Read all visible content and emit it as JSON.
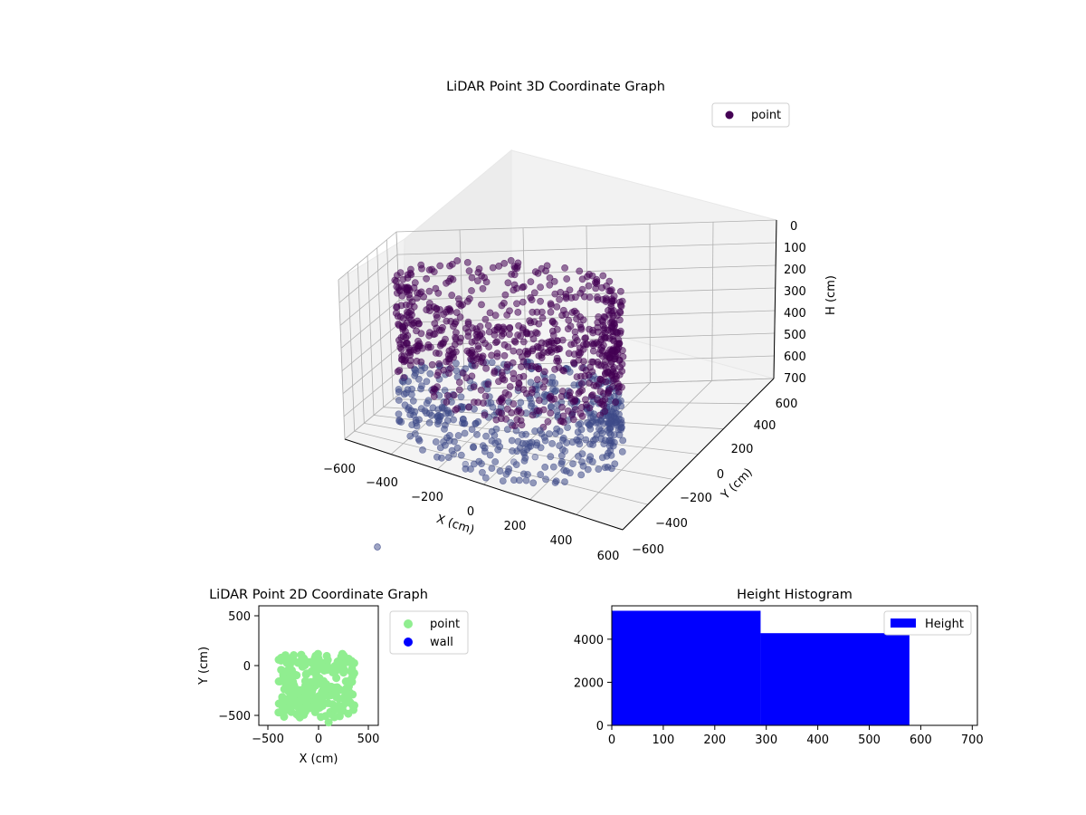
{
  "colors": {
    "point3d": "#440154",
    "point3d_low": "#3e4a89",
    "point2d": "#90ee90",
    "wall": "#0000ff",
    "hist": "#0000ff",
    "pane": "#f2f2f2",
    "grid": "#b0b0b0"
  },
  "chart_data": [
    {
      "type": "scatter",
      "title": "LiDAR Point 3D Coordinate Graph",
      "xlabel": "X (cm)",
      "ylabel": "Y (cm)",
      "zlabel": "H (cm)",
      "xlim": [
        -600,
        600
      ],
      "ylim": [
        -600,
        600
      ],
      "zlim": [
        700,
        0
      ],
      "xticks": [
        "−600",
        "−400",
        "−200",
        "0",
        "200",
        "400",
        "600"
      ],
      "yticks": [
        "−600",
        "−400",
        "−200",
        "0",
        "200",
        "400",
        "600"
      ],
      "zticks": [
        "0",
        "100",
        "200",
        "300",
        "400",
        "500",
        "600",
        "700"
      ],
      "grid": true,
      "legend": {
        "position": "top-right",
        "entries": [
          "point"
        ]
      },
      "series": [
        {
          "name": "point",
          "cloud": {
            "x_range": [
              -450,
              350
            ],
            "y_range": [
              -550,
              150
            ],
            "h_range": [
              0,
              700
            ],
            "shape": "ring"
          },
          "outliers": [
            {
              "x": -120,
              "y": -480,
              "h": 690
            },
            {
              "x": 60,
              "y": -420,
              "h": 650
            },
            {
              "x": 120,
              "y": -350,
              "h": 640
            },
            {
              "x": 220,
              "y": -300,
              "h": 610
            },
            {
              "x": 260,
              "y": -250,
              "h": 560
            },
            {
              "x": -30,
              "y": -200,
              "h": 580
            },
            {
              "x": -200,
              "y": -380,
              "h": 700
            }
          ]
        }
      ]
    },
    {
      "type": "scatter",
      "title": "LiDAR Point 2D Coordinate Graph",
      "xlabel": "X (cm)",
      "ylabel": "Y (cm)",
      "xlim": [
        -600,
        600
      ],
      "ylim": [
        -600,
        600
      ],
      "xticks": [
        "−500",
        "0",
        "500"
      ],
      "yticks": [
        "500",
        "0",
        "−500"
      ],
      "legend": {
        "position": "outside-right",
        "entries": [
          "point",
          "wall"
        ]
      },
      "series": [
        {
          "name": "point",
          "region": {
            "x_range": [
              -400,
              360
            ],
            "y_range": [
              -560,
              130
            ]
          }
        },
        {
          "name": "wall",
          "points": []
        }
      ]
    },
    {
      "type": "bar",
      "title": "Height Histogram",
      "xlabel": "",
      "ylabel": "",
      "xlim": [
        0,
        710
      ],
      "ylim": [
        0,
        5550
      ],
      "xticks": [
        "0",
        "100",
        "200",
        "300",
        "400",
        "500",
        "600",
        "700"
      ],
      "yticks": [
        "0",
        "2000",
        "4000"
      ],
      "legend": {
        "position": "top-right",
        "entries": [
          "Height"
        ]
      },
      "series": [
        {
          "name": "Height",
          "bins": [
            {
              "x0": 0,
              "x1": 289,
              "count": 5320
            },
            {
              "x0": 289,
              "x1": 578,
              "count": 4280
            }
          ]
        }
      ]
    }
  ]
}
